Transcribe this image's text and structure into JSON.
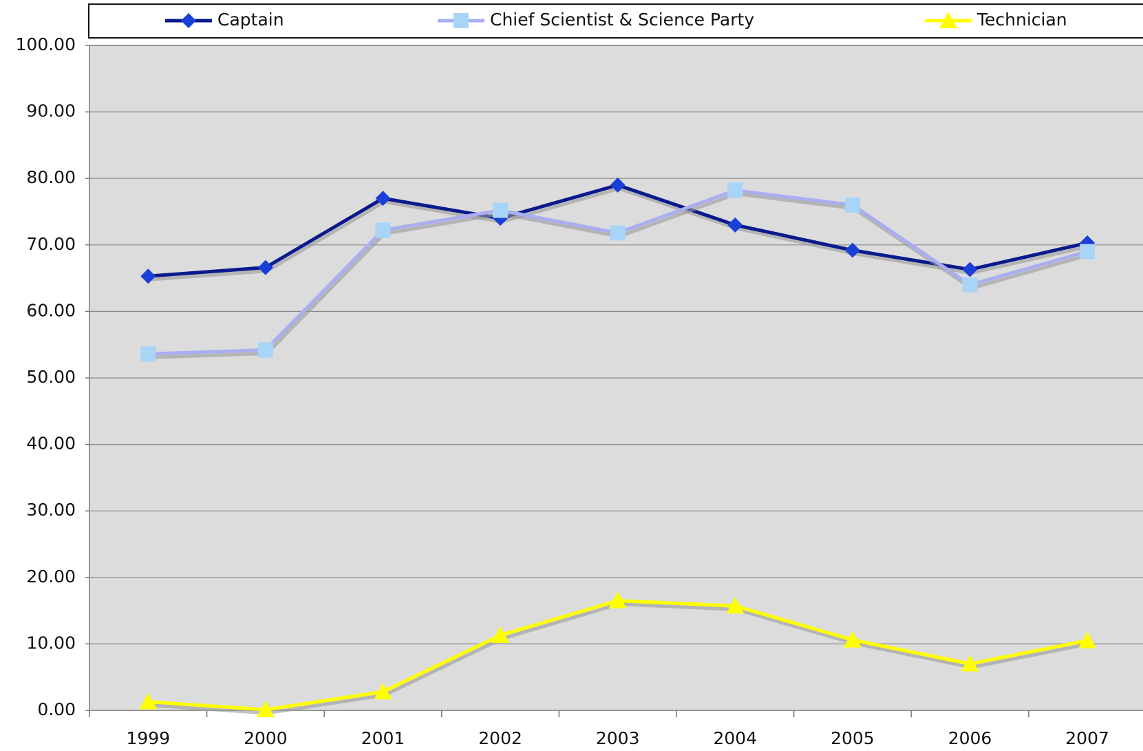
{
  "chart_data": {
    "type": "line",
    "categories": [
      "1999",
      "2000",
      "2001",
      "2002",
      "2003",
      "2004",
      "2005",
      "2006",
      "2007"
    ],
    "series": [
      {
        "name": "Captain",
        "color": "#0a1a8c",
        "marker": "diamond",
        "marker_color": "#1a3fd6",
        "values": [
          65.3,
          66.6,
          77.0,
          74.0,
          79.0,
          73.0,
          69.2,
          66.3,
          70.3
        ]
      },
      {
        "name": "Chief Scientist & Science Party",
        "color": "#a9aef0",
        "marker": "square",
        "marker_color": "#a8d4f8",
        "values": [
          53.6,
          54.2,
          72.2,
          75.2,
          71.8,
          78.2,
          76.0,
          64.0,
          69.0
        ]
      },
      {
        "name": "Technician",
        "color": "#ffff00",
        "marker": "triangle",
        "marker_color": "#ffff00",
        "values": [
          1.3,
          0.1,
          2.8,
          11.3,
          16.5,
          15.7,
          10.6,
          7.0,
          10.5
        ]
      }
    ],
    "ylim": [
      0,
      100
    ],
    "yticks": [
      {
        "value": 0,
        "label": "0.00"
      },
      {
        "value": 10,
        "label": "10.00"
      },
      {
        "value": 20,
        "label": "20.00"
      },
      {
        "value": 30,
        "label": "30.00"
      },
      {
        "value": 40,
        "label": "40.00"
      },
      {
        "value": 50,
        "label": "50.00"
      },
      {
        "value": 60,
        "label": "60.00"
      },
      {
        "value": 70,
        "label": "70.00"
      },
      {
        "value": 80,
        "label": "80.00"
      },
      {
        "value": 90,
        "label": "90.00"
      },
      {
        "value": 100,
        "label": "100.00"
      }
    ],
    "grid": true,
    "legend": "top"
  }
}
